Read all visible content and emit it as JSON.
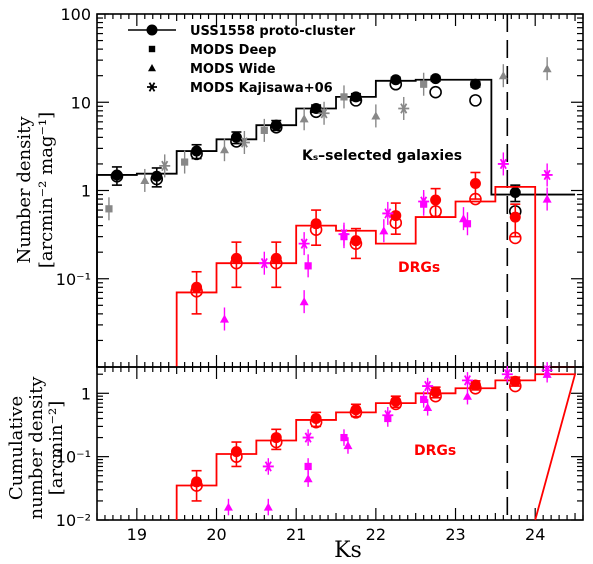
{
  "chart_data": [
    {
      "type": "scatter",
      "panel": "top",
      "ylabel_line1": "Number density",
      "ylabel_line2": "[arcmin⁻² mag⁻¹]",
      "xlim": [
        18.5,
        24.6
      ],
      "ylim": [
        0.01,
        100
      ],
      "yscale": "log",
      "x_ticks": [
        19,
        20,
        21,
        22,
        23,
        24
      ],
      "y_ticks": [
        {
          "v": 0.1,
          "label": "10⁻¹"
        },
        {
          "v": 1,
          "label": "1"
        },
        {
          "v": 10,
          "label": "10"
        },
        {
          "v": 100,
          "label": "100"
        }
      ],
      "vline_x": 23.65,
      "legend": [
        {
          "label": "USS1558 proto-cluster",
          "marker": "circle-line"
        },
        {
          "label": "MODS Deep",
          "marker": "square"
        },
        {
          "label": "MODS Wide",
          "marker": "triangle"
        },
        {
          "label": "MODS Kajisawa+06",
          "marker": "star"
        }
      ],
      "annotations": {
        "ks_label": "Kₛ–selected galaxies",
        "drg_label": "DRGs"
      },
      "colors": {
        "all": "#000000",
        "drg": "#ff0000",
        "mods_all": "#888888",
        "mods_drg": "#ff00ff"
      },
      "series": [
        {
          "name": "USS1558 proto-cluster",
          "group": "all",
          "steps": [
            [
              18.5,
              1.5
            ],
            [
              19.0,
              1.55
            ],
            [
              19.5,
              2.8
            ],
            [
              20.0,
              3.8
            ],
            [
              20.5,
              5.5
            ],
            [
              21.0,
              8.5
            ],
            [
              21.5,
              11.5
            ],
            [
              22.0,
              17.5
            ],
            [
              22.5,
              18.0
            ],
            [
              23.0,
              18.0
            ],
            [
              23.45,
              0.9
            ],
            [
              24.0,
              0.9
            ]
          ],
          "filled": [
            [
              18.75,
              1.5,
              0.35
            ],
            [
              19.25,
              1.45,
              0.35
            ],
            [
              19.75,
              2.8,
              0.5
            ],
            [
              20.25,
              4.0,
              0.6
            ],
            [
              20.75,
              5.5,
              0.7
            ],
            [
              21.25,
              8.5,
              0.8
            ],
            [
              21.75,
              11.5,
              1.0
            ],
            [
              22.25,
              18.0,
              1.2
            ],
            [
              22.75,
              18.5,
              1.2
            ],
            [
              23.25,
              16.0,
              1.1
            ],
            [
              23.75,
              0.95,
              0.2
            ]
          ],
          "open": [
            [
              18.75,
              1.45
            ],
            [
              19.25,
              1.35
            ],
            [
              19.75,
              2.6
            ],
            [
              20.25,
              3.6
            ],
            [
              20.75,
              5.2
            ],
            [
              21.25,
              7.8
            ],
            [
              21.75,
              10.5
            ],
            [
              22.25,
              16.0
            ],
            [
              22.75,
              13.0
            ],
            [
              23.25,
              10.5
            ],
            [
              23.75,
              0.58
            ]
          ]
        },
        {
          "name": "DRGs",
          "group": "drg",
          "steps": [
            [
              19.5,
              0.07
            ],
            [
              20.0,
              0.15
            ],
            [
              20.5,
              0.15
            ],
            [
              21.0,
              0.4
            ],
            [
              21.5,
              0.35
            ],
            [
              22.0,
              0.25
            ],
            [
              22.5,
              0.5
            ],
            [
              23.0,
              0.75
            ],
            [
              23.5,
              1.1
            ],
            [
              24.0,
              0.0
            ]
          ],
          "filled": [
            [
              19.75,
              0.08,
              0.04
            ],
            [
              20.25,
              0.17,
              0.09
            ],
            [
              20.75,
              0.17,
              0.09
            ],
            [
              21.25,
              0.42,
              0.18
            ],
            [
              21.75,
              0.27,
              0.1
            ],
            [
              22.25,
              0.52,
              0.2
            ],
            [
              22.75,
              0.78,
              0.27
            ],
            [
              23.25,
              1.2,
              0.4
            ],
            [
              23.75,
              0.5,
              0.2
            ]
          ],
          "open": [
            [
              19.75,
              0.072
            ],
            [
              20.25,
              0.15
            ],
            [
              20.75,
              0.15
            ],
            [
              21.25,
              0.36
            ],
            [
              21.75,
              0.25
            ],
            [
              22.25,
              0.43
            ],
            [
              22.75,
              0.58
            ],
            [
              23.25,
              0.8
            ],
            [
              23.75,
              0.29
            ]
          ]
        },
        {
          "name": "MODS Deep",
          "group": "mods_all",
          "marker": "square",
          "points": [
            [
              18.65,
              0.62
            ],
            [
              19.6,
              2.1
            ],
            [
              20.6,
              4.8
            ],
            [
              21.6,
              11.5
            ],
            [
              22.6,
              16.0
            ]
          ]
        },
        {
          "name": "MODS Wide",
          "group": "mods_all",
          "marker": "triangle",
          "points": [
            [
              19.1,
              1.3
            ],
            [
              20.1,
              2.9
            ],
            [
              21.1,
              6.5
            ],
            [
              22.0,
              7.0
            ],
            [
              23.6,
              20.0
            ],
            [
              24.15,
              24.0
            ]
          ]
        },
        {
          "name": "MODS Kajisawa+06",
          "group": "mods_all",
          "marker": "star",
          "points": [
            [
              19.35,
              1.9
            ],
            [
              20.35,
              3.5
            ],
            [
              21.35,
              7.5
            ],
            [
              22.35,
              8.5
            ]
          ]
        },
        {
          "name": "MODS Deep",
          "group": "mods_drg",
          "marker": "square",
          "points": [
            [
              21.15,
              0.14
            ],
            [
              21.6,
              0.3
            ],
            [
              22.6,
              0.7
            ],
            [
              23.15,
              0.42
            ]
          ]
        },
        {
          "name": "MODS Wide",
          "group": "mods_drg",
          "marker": "triangle",
          "points": [
            [
              20.1,
              0.035
            ],
            [
              21.1,
              0.055
            ],
            [
              22.1,
              0.35
            ],
            [
              23.1,
              0.48
            ],
            [
              24.15,
              0.8
            ]
          ]
        },
        {
          "name": "MODS Kajisawa+06",
          "group": "mods_drg",
          "marker": "star",
          "points": [
            [
              20.6,
              0.15
            ],
            [
              21.1,
              0.25
            ],
            [
              21.6,
              0.32
            ],
            [
              22.15,
              0.55
            ],
            [
              22.6,
              0.75
            ],
            [
              23.6,
              2.0
            ],
            [
              24.15,
              1.5
            ]
          ]
        }
      ]
    },
    {
      "type": "scatter",
      "panel": "bottom",
      "ylabel_line1": "Cumulative",
      "ylabel_line2": "number density",
      "ylabel_line3": "[arcmin⁻²]",
      "xlabel": "Ks",
      "xlim": [
        18.5,
        24.6
      ],
      "ylim": [
        0.01,
        2.6
      ],
      "yscale": "log",
      "x_ticks": [
        19,
        20,
        21,
        22,
        23,
        24
      ],
      "y_ticks": [
        {
          "v": 0.01,
          "label": "10⁻²"
        },
        {
          "v": 0.1,
          "label": "10⁻¹"
        },
        {
          "v": 1,
          "label": "1"
        }
      ],
      "vline_x": 23.65,
      "annotations": {
        "drg_label": "DRGs"
      },
      "series": [
        {
          "name": "DRGs",
          "group": "drg",
          "steps": [
            [
              19.5,
              0.035
            ],
            [
              20.0,
              0.11
            ],
            [
              20.5,
              0.18
            ],
            [
              21.0,
              0.38
            ],
            [
              21.5,
              0.5
            ],
            [
              22.0,
              0.7
            ],
            [
              22.5,
              1.0
            ],
            [
              23.0,
              1.2
            ],
            [
              23.5,
              1.6
            ],
            [
              24.0,
              2.0
            ]
          ],
          "filled": [
            [
              19.75,
              0.04,
              0.02
            ],
            [
              20.25,
              0.12,
              0.05
            ],
            [
              20.75,
              0.2,
              0.07
            ],
            [
              21.25,
              0.4,
              0.1
            ],
            [
              21.75,
              0.55,
              0.12
            ],
            [
              22.25,
              0.75,
              0.15
            ],
            [
              22.75,
              1.05,
              0.2
            ],
            [
              23.25,
              1.35,
              0.22
            ],
            [
              23.75,
              1.55,
              0.25
            ]
          ],
          "open": [
            [
              19.75,
              0.035
            ],
            [
              20.25,
              0.1
            ],
            [
              20.75,
              0.17
            ],
            [
              21.25,
              0.35
            ],
            [
              21.75,
              0.5
            ],
            [
              22.25,
              0.68
            ],
            [
              22.75,
              0.9
            ],
            [
              23.25,
              1.2
            ],
            [
              23.75,
              1.3
            ]
          ]
        },
        {
          "name": "MODS Deep",
          "group": "mods_drg",
          "marker": "square",
          "points": [
            [
              21.15,
              0.07
            ],
            [
              21.6,
              0.2
            ],
            [
              22.15,
              0.4
            ],
            [
              22.6,
              0.8
            ]
          ]
        },
        {
          "name": "MODS Wide",
          "group": "mods_drg",
          "marker": "triangle",
          "points": [
            [
              20.15,
              0.016
            ],
            [
              20.65,
              0.016
            ],
            [
              21.15,
              0.045
            ],
            [
              21.65,
              0.15
            ],
            [
              22.65,
              0.6
            ],
            [
              23.15,
              0.9
            ],
            [
              24.15,
              2.0
            ]
          ]
        },
        {
          "name": "MODS Kajisawa+06",
          "group": "mods_drg",
          "marker": "star",
          "points": [
            [
              20.65,
              0.07
            ],
            [
              21.15,
              0.2
            ],
            [
              22.15,
              0.45
            ],
            [
              22.65,
              1.3
            ],
            [
              23.15,
              1.6
            ],
            [
              23.65,
              2.0
            ],
            [
              24.15,
              2.3
            ]
          ]
        }
      ]
    }
  ]
}
